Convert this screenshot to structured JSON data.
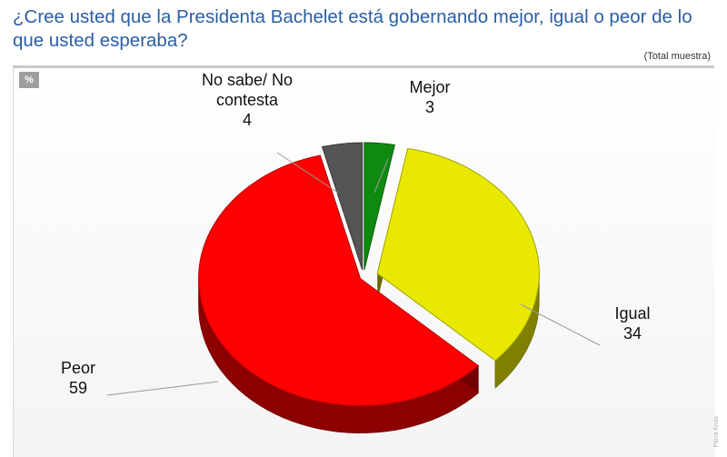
{
  "header": {
    "title": "¿Cree usted que la Presidenta Bachelet está gobernando mejor, igual o peor de lo que usted esperaba?",
    "subtitle": "(Total muestra)",
    "unit_badge": "%"
  },
  "watermark": "Parra Arias",
  "colors": {
    "title": "#2a5ea3",
    "mejor": "#0e8a10",
    "igual": "#e8e800",
    "peor": "#ff0000",
    "no_sabe": "#555555"
  },
  "chart_data": {
    "type": "pie",
    "style": "3d-exploded",
    "title": "¿Cree usted que la Presidenta Bachelet está gobernando mejor, igual o peor de lo que usted esperaba?",
    "subtitle": "(Total muestra)",
    "unit": "%",
    "slices": [
      {
        "label": "Mejor",
        "value": 3,
        "color": "#0e8a10",
        "label_lines": [
          "Mejor"
        ]
      },
      {
        "label": "Igual",
        "value": 34,
        "color": "#e8e800",
        "label_lines": [
          "Igual"
        ]
      },
      {
        "label": "Peor",
        "value": 59,
        "color": "#ff0000",
        "label_lines": [
          "Peor"
        ]
      },
      {
        "label": "No sabe/ No contesta",
        "value": 4,
        "color": "#555555",
        "label_lines": [
          "No sabe/ No",
          "contesta"
        ]
      }
    ]
  }
}
